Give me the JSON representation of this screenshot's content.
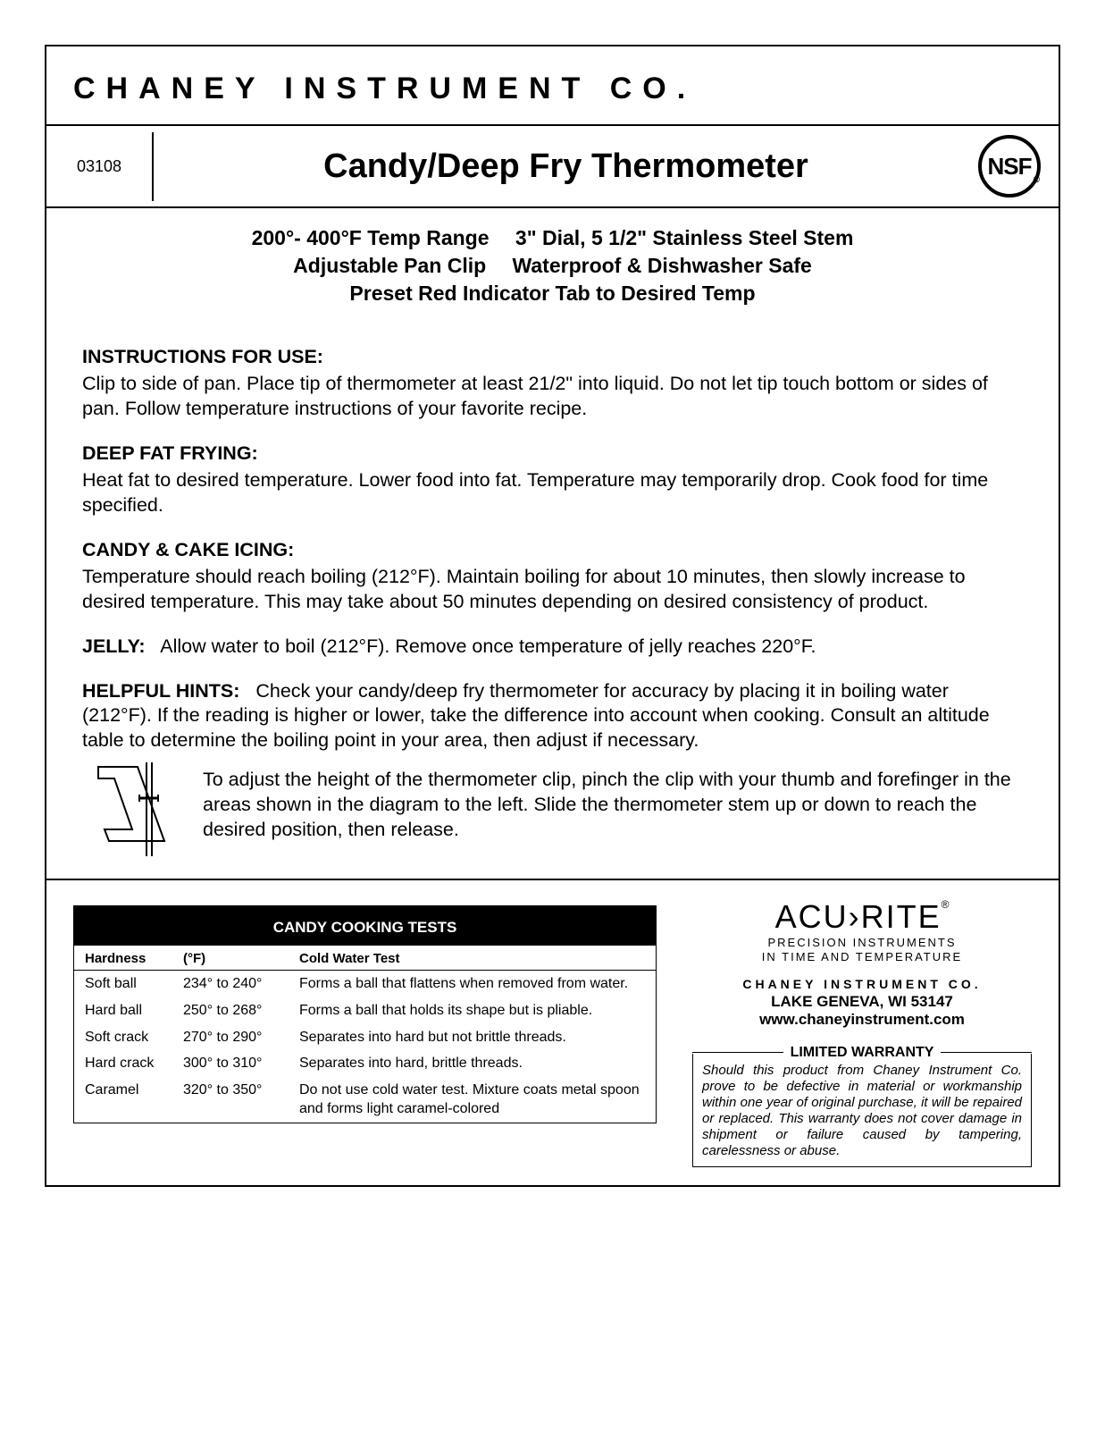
{
  "company_header": "CHANEY INSTRUMENT CO.",
  "model_number": "03108",
  "product_title": "Candy/Deep Fry Thermometer",
  "nsf_text": "NSF",
  "nsf_reg": "®",
  "specs_line1": "200°- 400°F Temp Range  3\" Dial, 5 1/2\" Stainless Steel Stem",
  "specs_line2": "Adjustable Pan Clip  Waterproof & Dishwasher Safe",
  "specs_line3": "Preset Red Indicator Tab to Desired Temp",
  "instructions_heading": "INSTRUCTIONS FOR USE:",
  "instructions_body": "Clip to side of pan. Place tip of thermometer at least 21/2\" into liquid. Do not let tip touch bottom or sides of pan. Follow temperature instructions of your favorite recipe.",
  "deepfry_heading": "DEEP FAT FRYING:",
  "deepfry_body": "Heat fat to desired temperature. Lower food into fat. Temperature may temporarily drop. Cook food for time specified.",
  "candy_heading": "CANDY & CAKE ICING:",
  "candy_body": "Temperature should reach boiling (212°F). Maintain boiling for about 10 minutes, then slowly increase to desired temperature. This may take about 50 minutes depending on desired consistency of product.",
  "jelly_heading": "JELLY:",
  "jelly_body": "Allow water to boil (212°F). Remove once temperature of jelly reaches 220°F.",
  "hints_heading": "HELPFUL HINTS:",
  "hints_body": "Check your candy/deep fry thermometer for accuracy by placing it in boiling water (212°F). If the reading is higher or lower, take the difference into account when cooking. Consult an altitude table to determine the boiling point in your area, then adjust if necessary.",
  "clip_body": "To adjust the height of the thermometer clip, pinch the clip with your thumb and forefinger in the areas shown in the diagram to the left. Slide the thermometer stem up or down to reach the desired position, then release.",
  "candy_table": {
    "title": "CANDY COOKING TESTS",
    "columns": [
      "Hardness",
      "(°F)",
      "Cold Water Test"
    ],
    "rows": [
      [
        "Soft ball",
        "234° to 240°",
        "Forms a ball that flattens when removed from water."
      ],
      [
        "Hard ball",
        "250° to 268°",
        "Forms a ball that holds its shape but is pliable."
      ],
      [
        "Soft crack",
        "270° to 290°",
        "Separates into hard but not brittle threads."
      ],
      [
        "Hard crack",
        "300° to 310°",
        "Separates into hard, brittle threads."
      ],
      [
        "Caramel",
        "320° to 350°",
        "Do not use cold water test. Mixture coats metal spoon and forms light caramel-colored"
      ]
    ]
  },
  "acurite_main": "ACU›RITE",
  "acurite_reg": "®",
  "acurite_tag1": "PRECISION INSTRUMENTS",
  "acurite_tag2": "IN TIME AND TEMPERATURE",
  "company_sub": "CHANEY INSTRUMENT CO.",
  "location": "LAKE GENEVA, WI 53147",
  "website": "www.chaneyinstrument.com",
  "warranty_title": "LIMITED WARRANTY",
  "warranty_body": "Should this product from Chaney Instrument Co. prove to be defective in material or workmanship within one year of original purchase, it will be repaired or replaced. This warranty does not cover damage in shipment or failure caused by tampering, carelessness or abuse."
}
